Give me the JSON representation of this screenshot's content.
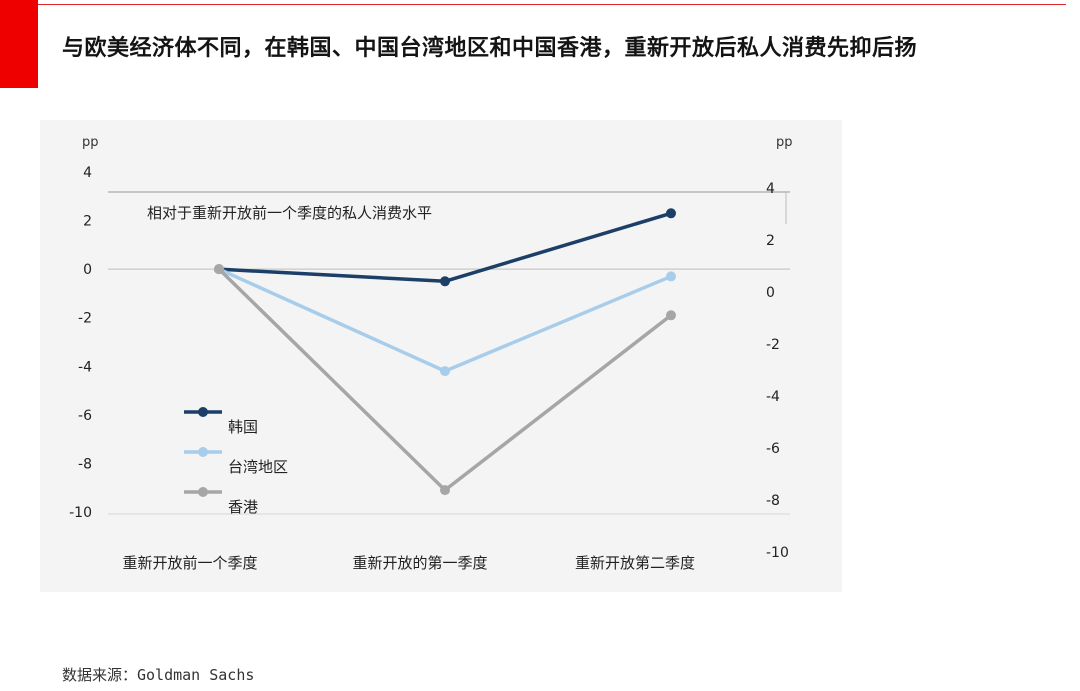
{
  "page": {
    "title": "与欧美经济体不同，在韩国、中国台湾地区和中国香港，重新开放后私人消费先抑后扬",
    "source": "数据来源：Goldman Sachs"
  },
  "colors": {
    "accent_red": "#ee0000",
    "korea": "#1b3f66",
    "taiwan": "#a8cdeb",
    "hongkong": "#a6a6a6"
  },
  "chart_data": {
    "type": "line",
    "subtitle": "相对于重新开放前一个季度的私人消费水平",
    "categories": [
      "重新开放前一个季度",
      "重新开放的第一季度",
      "重新开放第二季度"
    ],
    "left_axis": {
      "unit": "pp",
      "ylim": [
        -10,
        4
      ],
      "ticks": [
        4,
        2,
        0,
        -2,
        -4,
        -6,
        -8,
        -10
      ]
    },
    "right_axis": {
      "unit": "pp",
      "ylim": [
        -10,
        4
      ],
      "ticks": [
        4,
        2,
        0,
        -2,
        -4,
        -6,
        -8,
        -10
      ]
    },
    "legend_position": "bottom-left",
    "series": [
      {
        "name": "韩国",
        "color": "#1b3f66",
        "values": [
          0,
          -0.5,
          2.3
        ]
      },
      {
        "name": "台湾地区",
        "color": "#a8cdeb",
        "values": [
          0,
          -4.2,
          -0.3
        ]
      },
      {
        "name": "香港",
        "color": "#a6a6a6",
        "values": [
          0,
          -9.1,
          -1.9
        ]
      }
    ]
  }
}
